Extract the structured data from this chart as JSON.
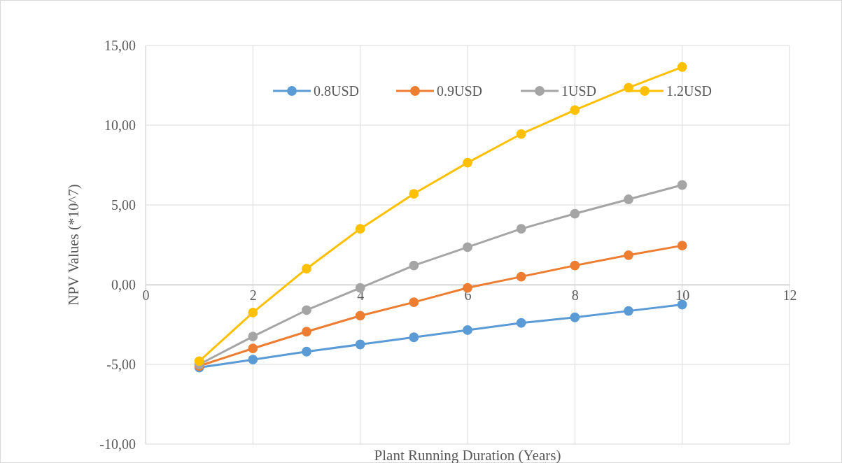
{
  "chart_data": {
    "type": "line",
    "xlabel": "Plant Running Duration (Years)",
    "ylabel": "NPV Values (*10^7)",
    "x": [
      1,
      2,
      3,
      4,
      5,
      6,
      7,
      8,
      9,
      10
    ],
    "xlim": [
      0,
      12
    ],
    "xticks": [
      0,
      2,
      4,
      6,
      8,
      10,
      12
    ],
    "ylim": [
      -10,
      15
    ],
    "yticks": [
      {
        "value": -10,
        "label": "-10,00"
      },
      {
        "value": -5,
        "label": "-5,00"
      },
      {
        "value": 0,
        "label": "0,00"
      },
      {
        "value": 5,
        "label": "5,00"
      },
      {
        "value": 10,
        "label": "10,00"
      },
      {
        "value": 15,
        "label": "15,00"
      }
    ],
    "grid": true,
    "legend": "top",
    "marker": "circle",
    "line_style": "solid",
    "series": [
      {
        "name": "0.8USD",
        "color": "#5b9bd5",
        "values": [
          -5.2,
          -4.7,
          -4.2,
          -3.75,
          -3.3,
          -2.85,
          -2.4,
          -2.05,
          -1.65,
          -1.25
        ]
      },
      {
        "name": "0.9USD",
        "color": "#ed7d31",
        "values": [
          -5.1,
          -4.0,
          -2.95,
          -1.95,
          -1.1,
          -0.2,
          0.5,
          1.2,
          1.85,
          2.45
        ]
      },
      {
        "name": "1USD",
        "color": "#a5a5a5",
        "values": [
          -5.0,
          -3.25,
          -1.6,
          -0.2,
          1.2,
          2.35,
          3.5,
          4.45,
          5.35,
          6.25
        ]
      },
      {
        "name": "1.2USD",
        "color": "#ffc000",
        "values": [
          -4.8,
          -1.75,
          1.0,
          3.5,
          5.7,
          7.65,
          9.45,
          10.95,
          12.35,
          13.65
        ]
      }
    ]
  }
}
